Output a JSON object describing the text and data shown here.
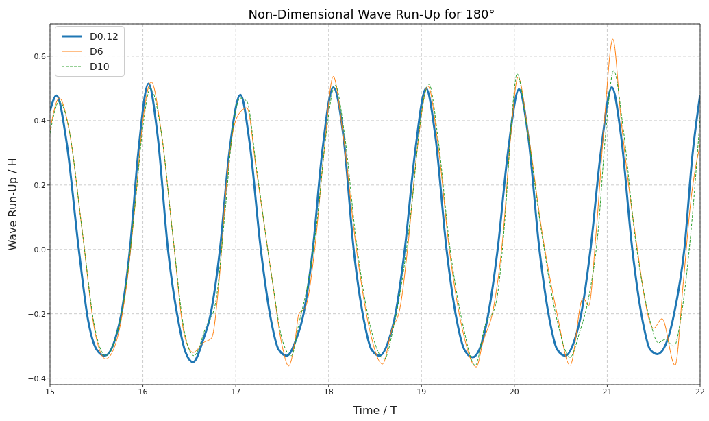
{
  "chart_data": {
    "type": "line",
    "title": "Non-Dimensional Wave Run-Up for 180°",
    "xlabel": "Time / T",
    "ylabel": "Wave Run-Up / H",
    "xlim": [
      15,
      22
    ],
    "xticks": [
      15,
      16,
      17,
      18,
      19,
      20,
      21,
      22
    ],
    "ylim": [
      -0.42,
      0.7
    ],
    "yticks": [
      {
        "value": -0.4,
        "label": "−0.4"
      },
      {
        "value": -0.2,
        "label": "−0.2"
      },
      {
        "value": 0,
        "label": "0.0"
      },
      {
        "value": 0.2,
        "label": "0.2"
      },
      {
        "value": 0.4,
        "label": "0.4"
      },
      {
        "value": 0.6,
        "label": "0.6"
      }
    ],
    "grid": true,
    "legend": "top left",
    "series": [
      {
        "name": "D0.12",
        "color": "#1f77b4",
        "line_style": "solid",
        "x": [
          15.0,
          15.07,
          15.18,
          15.31,
          15.41,
          15.5,
          15.59,
          15.7,
          15.78,
          15.86,
          15.95,
          16.06,
          16.16,
          16.27,
          16.38,
          16.46,
          16.54,
          16.65,
          16.73,
          16.83,
          16.93,
          17.05,
          17.15,
          17.27,
          17.38,
          17.46,
          17.55,
          17.65,
          17.73,
          17.83,
          17.93,
          18.05,
          18.16,
          18.27,
          18.38,
          18.46,
          18.55,
          18.65,
          18.72,
          18.82,
          18.93,
          19.05,
          19.15,
          19.27,
          19.38,
          19.46,
          19.55,
          19.65,
          19.72,
          19.82,
          19.93,
          20.05,
          20.15,
          20.27,
          20.38,
          20.46,
          20.55,
          20.65,
          20.72,
          20.82,
          20.93,
          21.05,
          21.15,
          21.27,
          21.38,
          21.46,
          21.54,
          21.65,
          21.72,
          21.83,
          21.92,
          22.0
        ],
        "values": [
          0.43,
          0.478,
          0.33,
          0.0,
          -0.22,
          -0.31,
          -0.33,
          -0.28,
          -0.18,
          0.0,
          0.3,
          0.515,
          0.35,
          0.0,
          -0.22,
          -0.32,
          -0.35,
          -0.28,
          -0.2,
          0.0,
          0.3,
          0.48,
          0.33,
          0.0,
          -0.22,
          -0.31,
          -0.33,
          -0.28,
          -0.2,
          0.0,
          0.3,
          0.503,
          0.35,
          0.0,
          -0.22,
          -0.31,
          -0.33,
          -0.28,
          -0.2,
          0.0,
          0.3,
          0.5,
          0.35,
          0.0,
          -0.22,
          -0.31,
          -0.335,
          -0.29,
          -0.2,
          0.0,
          0.3,
          0.497,
          0.35,
          0.0,
          -0.22,
          -0.31,
          -0.33,
          -0.28,
          -0.2,
          0.0,
          0.3,
          0.503,
          0.35,
          0.0,
          -0.22,
          -0.31,
          -0.325,
          -0.28,
          -0.2,
          0.0,
          0.3,
          0.48
        ]
      },
      {
        "name": "D6",
        "color": "#ff7f0e",
        "line_style": "solid",
        "x": [
          15.0,
          15.1,
          15.2,
          15.35,
          15.48,
          15.6,
          15.72,
          15.82,
          15.92,
          16.0,
          16.09,
          16.2,
          16.32,
          16.45,
          16.54,
          16.65,
          16.74,
          16.82,
          16.9,
          16.98,
          17.06,
          17.12,
          17.22,
          17.39,
          17.5,
          17.57,
          17.64,
          17.68,
          17.75,
          17.85,
          17.95,
          18.05,
          18.15,
          18.3,
          18.45,
          18.58,
          18.68,
          18.77,
          18.85,
          18.95,
          19.07,
          19.18,
          19.3,
          19.45,
          19.59,
          19.66,
          19.78,
          19.88,
          19.96,
          20.04,
          20.15,
          20.3,
          20.46,
          20.6,
          20.74,
          20.8,
          20.88,
          20.97,
          21.06,
          21.15,
          21.3,
          21.5,
          21.59,
          21.73,
          21.82,
          21.9,
          22.0
        ],
        "values": [
          0.37,
          0.47,
          0.38,
          0.05,
          -0.25,
          -0.34,
          -0.28,
          -0.12,
          0.15,
          0.4,
          0.52,
          0.36,
          0.05,
          -0.27,
          -0.32,
          -0.29,
          -0.275,
          -0.1,
          0.2,
          0.38,
          0.43,
          0.44,
          0.25,
          -0.09,
          -0.3,
          -0.362,
          -0.28,
          -0.2,
          -0.18,
          0.0,
          0.3,
          0.537,
          0.37,
          0.0,
          -0.26,
          -0.356,
          -0.25,
          -0.18,
          0.0,
          0.3,
          0.507,
          0.32,
          0.0,
          -0.26,
          -0.365,
          -0.29,
          -0.175,
          0.05,
          0.35,
          0.535,
          0.36,
          0.05,
          -0.2,
          -0.36,
          -0.15,
          -0.175,
          0.05,
          0.4,
          0.653,
          0.4,
          0.05,
          -0.245,
          -0.215,
          -0.36,
          -0.1,
          0.15,
          0.326
        ]
      },
      {
        "name": "D10",
        "color": "#2ca02c",
        "line_style": "dashed",
        "x": [
          15.0,
          15.1,
          15.2,
          15.35,
          15.48,
          15.6,
          15.7,
          15.8,
          15.92,
          16.0,
          16.08,
          16.2,
          16.32,
          16.45,
          16.55,
          16.68,
          16.78,
          16.88,
          16.97,
          17.05,
          17.12,
          17.22,
          17.39,
          17.5,
          17.6,
          17.68,
          17.78,
          17.88,
          17.97,
          18.07,
          18.17,
          18.3,
          18.45,
          18.6,
          18.7,
          18.8,
          18.9,
          18.98,
          19.08,
          19.18,
          19.3,
          19.45,
          19.58,
          19.68,
          19.8,
          19.9,
          19.97,
          20.03,
          20.13,
          20.3,
          20.46,
          20.6,
          20.7,
          20.8,
          20.9,
          20.98,
          21.07,
          21.17,
          21.3,
          21.46,
          21.55,
          21.62,
          21.72,
          21.8,
          21.9,
          22.0
        ],
        "values": [
          0.36,
          0.46,
          0.38,
          0.05,
          -0.24,
          -0.33,
          -0.28,
          -0.15,
          0.15,
          0.38,
          0.5,
          0.36,
          0.05,
          -0.26,
          -0.33,
          -0.24,
          -0.17,
          0.1,
          0.38,
          0.47,
          0.46,
          0.26,
          -0.09,
          -0.28,
          -0.33,
          -0.23,
          -0.1,
          0.1,
          0.35,
          0.51,
          0.36,
          0.02,
          -0.24,
          -0.34,
          -0.24,
          -0.08,
          0.15,
          0.38,
          0.513,
          0.34,
          0.02,
          -0.24,
          -0.36,
          -0.24,
          -0.17,
          0.1,
          0.4,
          0.545,
          0.39,
          0.04,
          -0.22,
          -0.335,
          -0.26,
          -0.15,
          0.05,
          0.35,
          0.555,
          0.38,
          0.04,
          -0.22,
          -0.29,
          -0.28,
          -0.3,
          -0.2,
          0.05,
          0.41
        ]
      }
    ]
  }
}
